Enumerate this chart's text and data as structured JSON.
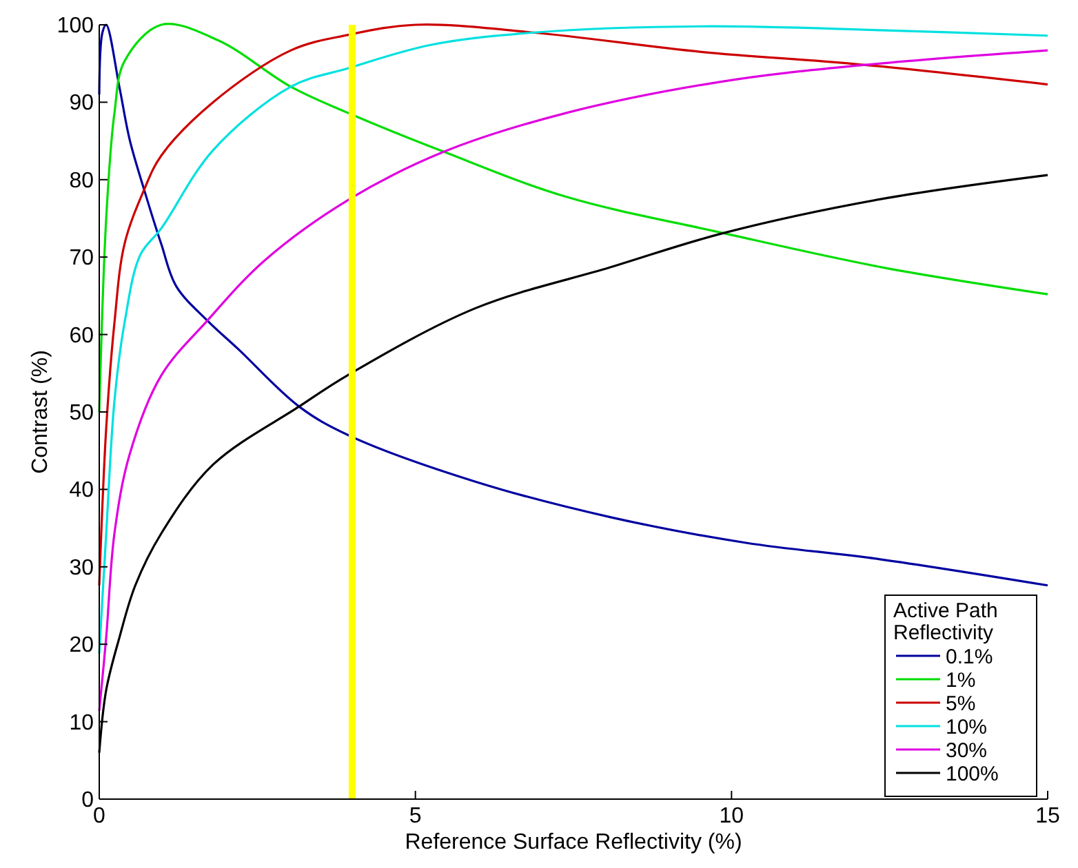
{
  "chart_data": {
    "type": "line",
    "xlabel": "Reference Surface Reflectivity (%)",
    "ylabel": "Contrast (%)",
    "legend_title": "Active Path Reflectivity",
    "xlim": [
      0,
      15
    ],
    "ylim": [
      0,
      100
    ],
    "xticks": [
      0,
      5,
      10,
      15
    ],
    "yticks": [
      0,
      10,
      20,
      30,
      40,
      50,
      60,
      70,
      80,
      90,
      100
    ],
    "grid": false,
    "legend": "bottom right",
    "line_style": "solid",
    "marker": "none",
    "ref_lines": [
      {
        "axis": "x",
        "value": 4,
        "label": null,
        "color": "#ffff00"
      }
    ],
    "series": [
      {
        "name": "0.1%",
        "color": "#0000a0",
        "x": [
          0,
          0.05,
          0.11,
          0.32,
          0.48,
          0.71,
          0.98,
          1.22,
          1.71,
          2.2,
          3.16,
          3.94,
          5.95,
          8.09,
          10.23,
          12.33,
          15
        ],
        "values": [
          91,
          99,
          100,
          91.9,
          85.2,
          78.7,
          71.7,
          66.2,
          61.8,
          58.1,
          50.7,
          47,
          41,
          36.4,
          33.1,
          31,
          27.6
        ]
      },
      {
        "name": "1%",
        "color": "#00dd00",
        "x": [
          0,
          0.11,
          0.24,
          0.4,
          0.98,
          1.88,
          3.03,
          3.94,
          5.45,
          7.38,
          9.87,
          12.37,
          15
        ],
        "values": [
          50,
          75,
          88.6,
          95.3,
          100,
          98,
          92,
          88.6,
          83.6,
          77.8,
          73.1,
          68.7,
          65.2
        ]
      },
      {
        "name": "5%",
        "color": "#cc0000",
        "x": [
          0,
          0.11,
          0.24,
          0.4,
          0.71,
          0.98,
          1.8,
          3.03,
          3.94,
          5,
          6.87,
          9.52,
          12,
          15
        ],
        "values": [
          27.6,
          47.9,
          61.5,
          71.7,
          78.7,
          83.1,
          90,
          96.7,
          98.7,
          100,
          99,
          96.5,
          94.9,
          92.3
        ]
      },
      {
        "name": "10%",
        "color": "#00e0e0",
        "x": [
          0,
          0.11,
          0.24,
          0.4,
          0.65,
          0.98,
          1.8,
          3.03,
          3.94,
          5.24,
          6.87,
          9.52,
          12.37,
          15
        ],
        "values": [
          18.8,
          34.3,
          51.4,
          61.5,
          70.3,
          73.7,
          83.8,
          92,
          94.4,
          97.4,
          99,
          99.8,
          99.3,
          98.6
        ]
      },
      {
        "name": "30%",
        "color": "#e000e0",
        "x": [
          0,
          0.11,
          0.24,
          0.48,
          0.98,
          1.71,
          2.62,
          3.94,
          5.45,
          7.38,
          9.87,
          12.08,
          15
        ],
        "values": [
          11.4,
          20.9,
          34.3,
          44.5,
          54.7,
          61.8,
          69.6,
          77.4,
          83.6,
          88.6,
          92.7,
          94.8,
          96.7
        ]
      },
      {
        "name": "100%",
        "color": "#000000",
        "x": [
          0,
          0.11,
          0.32,
          0.57,
          0.98,
          1.8,
          3.16,
          3.94,
          5.95,
          8.09,
          9.87,
          12.37,
          15
        ],
        "values": [
          6,
          14.1,
          20.9,
          27.6,
          34.3,
          43.2,
          50.7,
          54.8,
          63.4,
          68.7,
          73.1,
          77.5,
          80.6
        ]
      }
    ]
  }
}
